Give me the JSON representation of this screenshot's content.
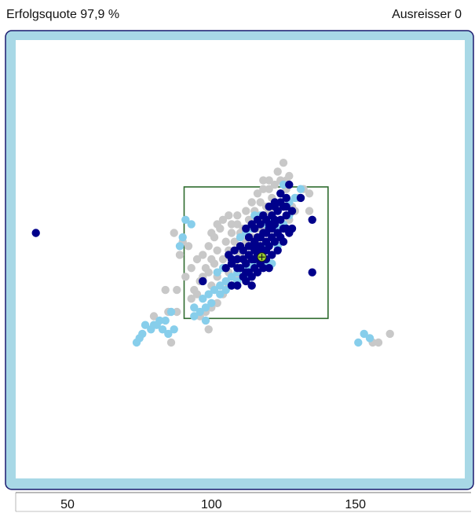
{
  "header": {
    "success_rate": "Erfolgsquote 97,9 %",
    "outliers": "Ausreisser 0"
  },
  "colors": {
    "frame_border": "#1a1a6e",
    "frame_fill": "#a8d8e6",
    "plot_bg": "#ffffff",
    "box": "#2e6b2e",
    "grey": "#c8c8c8",
    "light_blue": "#87ceeb",
    "dark_blue": "#00008b",
    "center_marker": "#9acd32"
  },
  "chart_data": {
    "type": "scatter",
    "xlim": [
      32,
      188
    ],
    "ylim": [
      0,
      100
    ],
    "x_ticks": [
      50,
      100,
      150
    ],
    "x_tick_labels": [
      "50",
      "100",
      "150"
    ],
    "grid": false,
    "box": {
      "x": [
        90.5,
        140.5
      ],
      "y": [
        36.5,
        66.5
      ]
    },
    "center": {
      "x": 117.5,
      "y": 50.5
    },
    "series": [
      {
        "color_key": "grey",
        "points": [
          [
            103,
            44
          ],
          [
            106,
            47
          ],
          [
            108,
            49
          ],
          [
            110,
            51
          ],
          [
            112,
            53
          ],
          [
            114,
            55
          ],
          [
            116,
            57
          ],
          [
            118,
            59
          ],
          [
            120,
            61
          ],
          [
            122,
            63
          ],
          [
            124,
            65
          ],
          [
            126,
            66
          ],
          [
            111,
            57
          ],
          [
            113,
            59
          ],
          [
            115,
            61
          ],
          [
            117,
            63
          ],
          [
            119,
            62
          ],
          [
            121,
            64
          ],
          [
            105,
            54
          ],
          [
            107,
            56
          ],
          [
            109,
            58
          ],
          [
            104,
            50
          ],
          [
            106,
            52
          ],
          [
            108,
            54
          ],
          [
            110,
            56
          ],
          [
            98,
            48
          ],
          [
            100,
            50
          ],
          [
            102,
            52
          ],
          [
            96,
            45
          ],
          [
            94,
            43
          ],
          [
            97,
            46
          ],
          [
            99,
            47
          ],
          [
            101,
            49
          ],
          [
            88,
            43
          ],
          [
            91,
            46
          ],
          [
            93,
            48
          ],
          [
            95,
            50
          ],
          [
            101,
            55
          ],
          [
            103,
            57
          ],
          [
            99,
            53
          ],
          [
            97,
            51
          ],
          [
            112,
            61
          ],
          [
            114,
            63
          ],
          [
            116,
            65
          ],
          [
            124,
            68
          ],
          [
            126,
            68
          ],
          [
            128,
            62
          ],
          [
            130,
            64
          ],
          [
            132,
            66
          ],
          [
            127,
            59
          ],
          [
            129,
            61
          ],
          [
            134,
            65
          ],
          [
            134,
            61
          ],
          [
            125,
            72
          ],
          [
            123,
            70
          ],
          [
            127,
            69
          ],
          [
            112,
            50
          ],
          [
            110,
            48
          ],
          [
            108,
            46
          ],
          [
            106,
            44
          ],
          [
            104,
            42
          ],
          [
            102,
            40
          ],
          [
            100,
            39
          ],
          [
            98,
            38
          ],
          [
            96,
            37
          ],
          [
            112,
            54
          ],
          [
            116,
            54
          ],
          [
            110,
            52
          ],
          [
            109,
            60
          ],
          [
            107,
            58
          ],
          [
            120,
            66
          ],
          [
            118,
            66
          ],
          [
            121,
            59
          ],
          [
            118,
            57
          ],
          [
            84,
            43
          ],
          [
            88,
            38
          ],
          [
            80,
            37
          ],
          [
            85,
            38
          ],
          [
            156,
            31
          ],
          [
            158,
            31
          ],
          [
            162,
            33
          ],
          [
            118,
            68
          ],
          [
            120,
            68
          ],
          [
            104,
            59
          ],
          [
            102,
            58
          ],
          [
            100,
            56
          ],
          [
            122,
            67
          ],
          [
            106,
            60
          ],
          [
            102,
            46
          ],
          [
            100,
            44
          ],
          [
            90,
            54
          ],
          [
            92,
            53
          ],
          [
            89,
            51
          ],
          [
            87,
            56
          ],
          [
            93,
            41
          ],
          [
            95,
            42
          ],
          [
            99,
            34
          ],
          [
            86,
            31
          ]
        ]
      },
      {
        "color_key": "light_blue",
        "points": [
          [
            74,
            31
          ],
          [
            76,
            33
          ],
          [
            77,
            35
          ],
          [
            79,
            34
          ],
          [
            81,
            35
          ],
          [
            83,
            34
          ],
          [
            85,
            33
          ],
          [
            87,
            34
          ],
          [
            84,
            36
          ],
          [
            82,
            36
          ],
          [
            80,
            35
          ],
          [
            75,
            32
          ],
          [
            86,
            38
          ],
          [
            97,
            41
          ],
          [
            99,
            42
          ],
          [
            101,
            43
          ],
          [
            103,
            44
          ],
          [
            105,
            45
          ],
          [
            107,
            46
          ],
          [
            109,
            47
          ],
          [
            111,
            48
          ],
          [
            113,
            48
          ],
          [
            115,
            49
          ],
          [
            117,
            51
          ],
          [
            119,
            53
          ],
          [
            121,
            55
          ],
          [
            123,
            57
          ],
          [
            125,
            58
          ],
          [
            127,
            60
          ],
          [
            111,
            46
          ],
          [
            113,
            46
          ],
          [
            109,
            45
          ],
          [
            107,
            44
          ],
          [
            105,
            43
          ],
          [
            103,
            42
          ],
          [
            100,
            40
          ],
          [
            98,
            39
          ],
          [
            96,
            38
          ],
          [
            94,
            39
          ],
          [
            123,
            61
          ],
          [
            121,
            59
          ],
          [
            125,
            62
          ],
          [
            127,
            63
          ],
          [
            129,
            64
          ],
          [
            131,
            66
          ],
          [
            125,
            67
          ],
          [
            91,
            59
          ],
          [
            93,
            58
          ],
          [
            90,
            55
          ],
          [
            89,
            53
          ],
          [
            115,
            60
          ],
          [
            117,
            60
          ],
          [
            114,
            57
          ],
          [
            112,
            56
          ],
          [
            119,
            58
          ],
          [
            110,
            55
          ],
          [
            155,
            32
          ],
          [
            153,
            33
          ],
          [
            151,
            31
          ],
          [
            98,
            36
          ],
          [
            94,
            37
          ],
          [
            117,
            52
          ],
          [
            117,
            49
          ],
          [
            121,
            49
          ],
          [
            123,
            53
          ],
          [
            119,
            49
          ],
          [
            102,
            47
          ],
          [
            104,
            48
          ]
        ]
      },
      {
        "color_key": "dark_blue",
        "points": [
          [
            111,
            46
          ],
          [
            113,
            47
          ],
          [
            115,
            48
          ],
          [
            117,
            49
          ],
          [
            119,
            50
          ],
          [
            121,
            51
          ],
          [
            123,
            52
          ],
          [
            125,
            54
          ],
          [
            127,
            56
          ],
          [
            110,
            48
          ],
          [
            112,
            49
          ],
          [
            114,
            50
          ],
          [
            116,
            51
          ],
          [
            118,
            52
          ],
          [
            120,
            53
          ],
          [
            122,
            54
          ],
          [
            124,
            55
          ],
          [
            126,
            57
          ],
          [
            113,
            51
          ],
          [
            115,
            52
          ],
          [
            117,
            53
          ],
          [
            119,
            54
          ],
          [
            121,
            55
          ],
          [
            123,
            56
          ],
          [
            125,
            57
          ],
          [
            114,
            53
          ],
          [
            116,
            55
          ],
          [
            118,
            56
          ],
          [
            120,
            57
          ],
          [
            122,
            58
          ],
          [
            124,
            59
          ],
          [
            126,
            60
          ],
          [
            113,
            55
          ],
          [
            115,
            57
          ],
          [
            117,
            58
          ],
          [
            119,
            59
          ],
          [
            121,
            60
          ],
          [
            123,
            61
          ],
          [
            125,
            62
          ],
          [
            105,
            48
          ],
          [
            107,
            49
          ],
          [
            109,
            48
          ],
          [
            108,
            52
          ],
          [
            106,
            51
          ],
          [
            111,
            52
          ],
          [
            110,
            53
          ],
          [
            112,
            57
          ],
          [
            114,
            58
          ],
          [
            116,
            59
          ],
          [
            118,
            60
          ],
          [
            120,
            62
          ],
          [
            122,
            62
          ],
          [
            124,
            63
          ],
          [
            126,
            64
          ],
          [
            120,
            58
          ],
          [
            122,
            59
          ],
          [
            121,
            57
          ],
          [
            119,
            56
          ],
          [
            117,
            55
          ],
          [
            115,
            54
          ],
          [
            113,
            53
          ],
          [
            111,
            50
          ],
          [
            109,
            50
          ],
          [
            107,
            50
          ],
          [
            116,
            47
          ],
          [
            118,
            48
          ],
          [
            120,
            48
          ],
          [
            112,
            47
          ],
          [
            114,
            46
          ],
          [
            128,
            57
          ],
          [
            128,
            61
          ],
          [
            119,
            52
          ],
          [
            117,
            52
          ],
          [
            115,
            50
          ],
          [
            116,
            53
          ],
          [
            122,
            63
          ],
          [
            124,
            65
          ],
          [
            126,
            62
          ],
          [
            127,
            67
          ],
          [
            131,
            64
          ],
          [
            135,
            59
          ],
          [
            112,
            45
          ],
          [
            114,
            44
          ],
          [
            107,
            44
          ],
          [
            109,
            44
          ],
          [
            97,
            45
          ],
          [
            39,
            56
          ],
          [
            135,
            47
          ]
        ]
      }
    ]
  }
}
